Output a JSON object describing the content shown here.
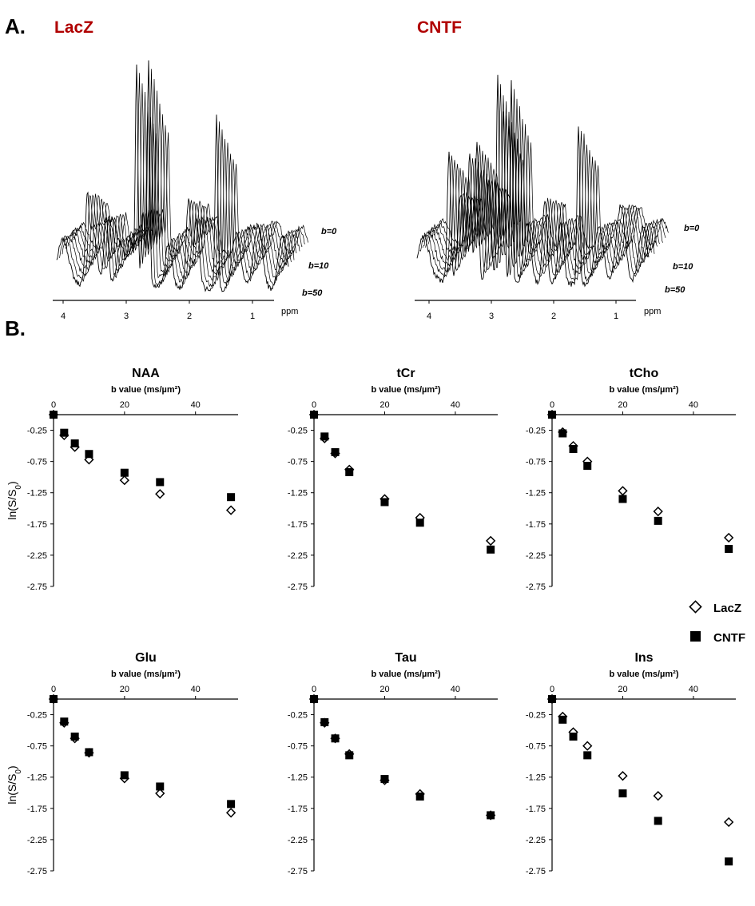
{
  "panels": {
    "a_label": "A.",
    "b_label": "B."
  },
  "spectra": {
    "groups": [
      "LacZ",
      "CNTF"
    ],
    "title_color": "#b00000",
    "ppm_ticks": [
      "4",
      "3",
      "2",
      "1"
    ],
    "ppm_label": "ppm",
    "b_annotations": [
      "b=0",
      "b=10",
      "b=50"
    ],
    "n_traces": 8
  },
  "legend": {
    "lacz": "LacZ",
    "cntf": "CNTF"
  },
  "chart_data": [
    {
      "type": "scatter",
      "title": "NAA",
      "xlabel": "b value (ms/µm²)",
      "ylabel": "ln(S/S0)",
      "xlim": [
        0,
        52
      ],
      "ylim": [
        -2.75,
        0
      ],
      "xticks": [
        "0",
        "20",
        "40"
      ],
      "yticks": [
        "-0.25",
        "-0.75",
        "-1.25",
        "-1.75",
        "-2.25",
        "-2.75"
      ],
      "series": [
        {
          "name": "LacZ",
          "marker": "open-diamond",
          "x": [
            0,
            3,
            6,
            10,
            20,
            30,
            50
          ],
          "y": [
            0,
            -0.33,
            -0.52,
            -0.72,
            -1.05,
            -1.27,
            -1.53
          ]
        },
        {
          "name": "CNTF",
          "marker": "filled-square",
          "x": [
            0,
            3,
            6,
            10,
            20,
            30,
            50
          ],
          "y": [
            0,
            -0.29,
            -0.46,
            -0.63,
            -0.93,
            -1.08,
            -1.32
          ]
        }
      ]
    },
    {
      "type": "scatter",
      "title": "tCr",
      "xlabel": "b value (ms/µm²)",
      "ylabel": "ln(S/S0)",
      "xlim": [
        0,
        52
      ],
      "ylim": [
        -2.75,
        0
      ],
      "xticks": [
        "0",
        "20",
        "40"
      ],
      "yticks": [
        "-0.25",
        "-0.75",
        "-1.25",
        "-1.75",
        "-2.25",
        "-2.75"
      ],
      "series": [
        {
          "name": "LacZ",
          "marker": "open-diamond",
          "x": [
            0,
            3,
            6,
            10,
            20,
            30,
            50
          ],
          "y": [
            0,
            -0.38,
            -0.62,
            -0.88,
            -1.35,
            -1.65,
            -2.02
          ]
        },
        {
          "name": "CNTF",
          "marker": "filled-square",
          "x": [
            0,
            3,
            6,
            10,
            20,
            30,
            50
          ],
          "y": [
            0,
            -0.35,
            -0.6,
            -0.92,
            -1.4,
            -1.73,
            -2.16
          ]
        }
      ]
    },
    {
      "type": "scatter",
      "title": "tCho",
      "xlabel": "b value (ms/µm²)",
      "ylabel": "ln(S/S0)",
      "xlim": [
        0,
        52
      ],
      "ylim": [
        -2.75,
        0
      ],
      "xticks": [
        "0",
        "20",
        "40"
      ],
      "yticks": [
        "-0.25",
        "-0.75",
        "-1.25",
        "-1.75",
        "-2.25",
        "-2.75"
      ],
      "series": [
        {
          "name": "LacZ",
          "marker": "open-diamond",
          "x": [
            0,
            3,
            6,
            10,
            20,
            30,
            50
          ],
          "y": [
            0,
            -0.28,
            -0.5,
            -0.75,
            -1.22,
            -1.55,
            -1.97
          ]
        },
        {
          "name": "CNTF",
          "marker": "filled-square",
          "x": [
            0,
            3,
            6,
            10,
            20,
            30,
            50
          ],
          "y": [
            0,
            -0.3,
            -0.55,
            -0.82,
            -1.35,
            -1.7,
            -2.15
          ]
        }
      ]
    },
    {
      "type": "scatter",
      "title": "Glu",
      "xlabel": "b value (ms/µm²)",
      "ylabel": "ln(S/S0)",
      "xlim": [
        0,
        52
      ],
      "ylim": [
        -2.75,
        0
      ],
      "xticks": [
        "0",
        "20",
        "40"
      ],
      "yticks": [
        "-0.25",
        "-0.75",
        "-1.25",
        "-1.75",
        "-2.25",
        "-2.75"
      ],
      "series": [
        {
          "name": "LacZ",
          "marker": "open-diamond",
          "x": [
            0,
            3,
            6,
            10,
            20,
            30,
            50
          ],
          "y": [
            0,
            -0.38,
            -0.63,
            -0.86,
            -1.27,
            -1.51,
            -1.82
          ]
        },
        {
          "name": "CNTF",
          "marker": "filled-square",
          "x": [
            0,
            3,
            6,
            10,
            20,
            30,
            50
          ],
          "y": [
            0,
            -0.36,
            -0.6,
            -0.85,
            -1.22,
            -1.4,
            -1.68
          ]
        }
      ]
    },
    {
      "type": "scatter",
      "title": "Tau",
      "xlabel": "b value (ms/µm²)",
      "ylabel": "ln(S/S0)",
      "xlim": [
        0,
        52
      ],
      "ylim": [
        -2.75,
        0
      ],
      "xticks": [
        "0",
        "20",
        "40"
      ],
      "yticks": [
        "-0.25",
        "-0.75",
        "-1.25",
        "-1.75",
        "-2.25",
        "-2.75"
      ],
      "series": [
        {
          "name": "LacZ",
          "marker": "open-diamond",
          "x": [
            0,
            3,
            6,
            10,
            20,
            30,
            50
          ],
          "y": [
            0,
            -0.38,
            -0.63,
            -0.88,
            -1.3,
            -1.52,
            -1.86
          ]
        },
        {
          "name": "CNTF",
          "marker": "filled-square",
          "x": [
            0,
            3,
            6,
            10,
            20,
            30,
            50
          ],
          "y": [
            0,
            -0.37,
            -0.63,
            -0.9,
            -1.28,
            -1.56,
            -1.86
          ]
        }
      ]
    },
    {
      "type": "scatter",
      "title": "Ins",
      "xlabel": "b value (ms/µm²)",
      "ylabel": "ln(S/S0)",
      "xlim": [
        0,
        52
      ],
      "ylim": [
        -2.75,
        0
      ],
      "xticks": [
        "0",
        "20",
        "40"
      ],
      "yticks": [
        "-0.25",
        "-0.75",
        "-1.25",
        "-1.75",
        "-2.25",
        "-2.75"
      ],
      "series": [
        {
          "name": "LacZ",
          "marker": "open-diamond",
          "x": [
            0,
            3,
            6,
            10,
            20,
            30,
            50
          ],
          "y": [
            0,
            -0.28,
            -0.53,
            -0.75,
            -1.23,
            -1.55,
            -1.97
          ]
        },
        {
          "name": "CNTF",
          "marker": "filled-square",
          "x": [
            0,
            3,
            6,
            10,
            20,
            30,
            50
          ],
          "y": [
            0,
            -0.33,
            -0.6,
            -0.9,
            -1.51,
            -1.95,
            -2.6
          ]
        }
      ]
    }
  ]
}
